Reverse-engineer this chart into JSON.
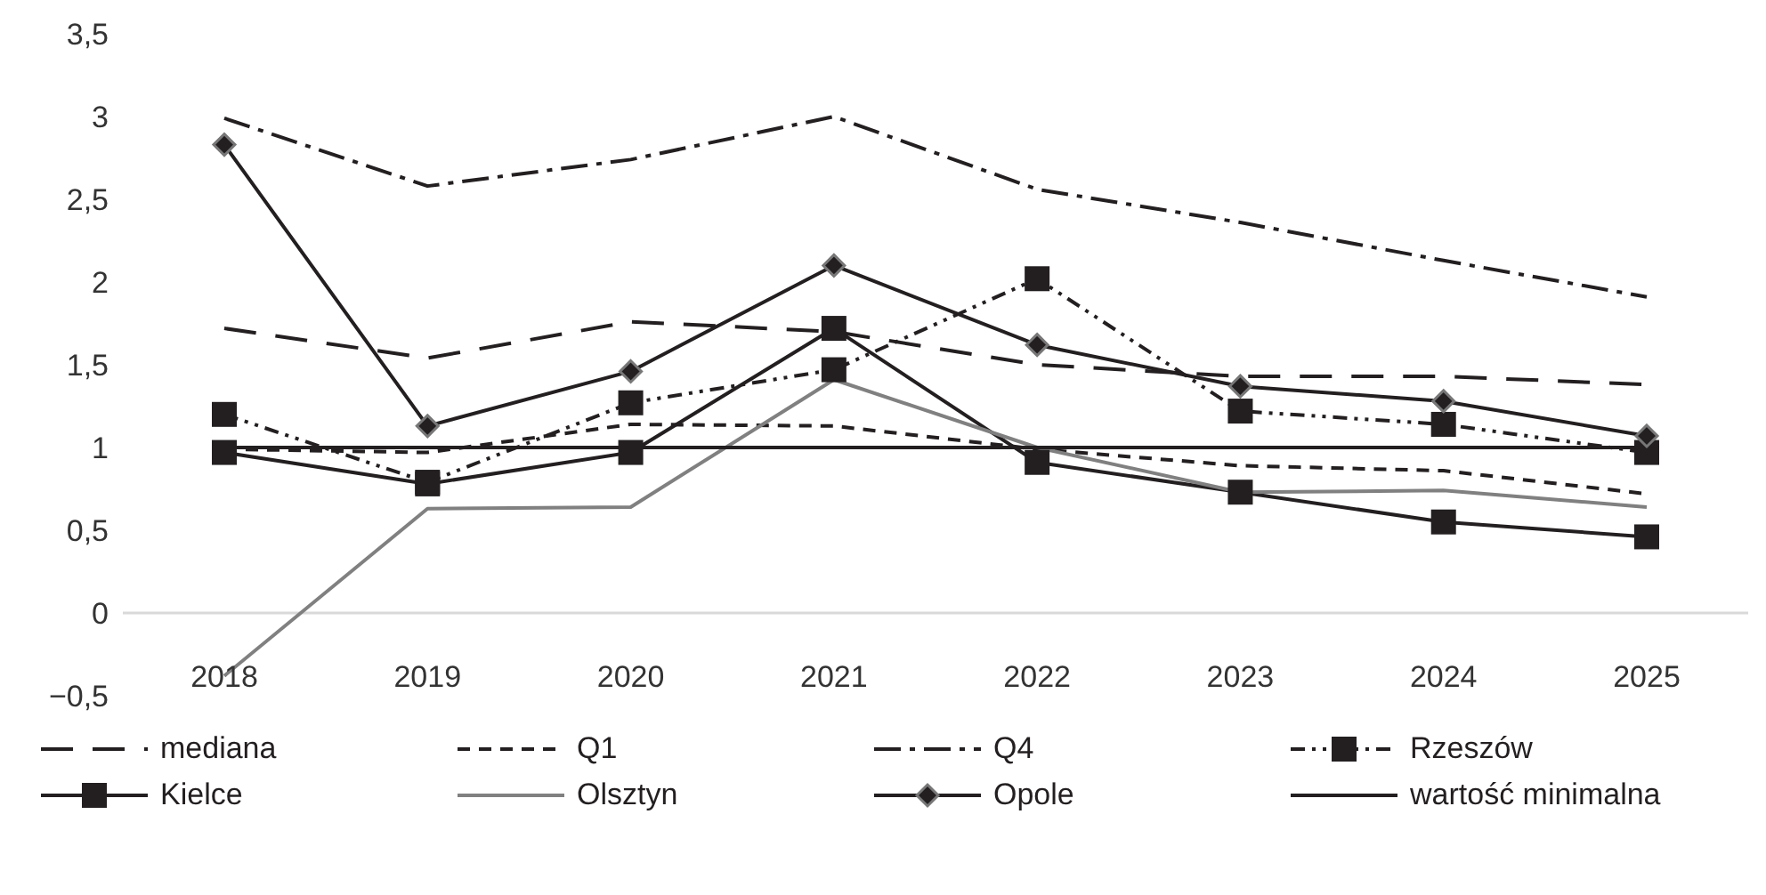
{
  "chart_data": {
    "type": "line",
    "categories": [
      "2018",
      "2019",
      "2020",
      "2021",
      "2022",
      "2023",
      "2024",
      "2025"
    ],
    "series": [
      {
        "name": "mediana",
        "color": "#231f20",
        "line_style": "longdash",
        "marker": "none",
        "values": [
          1.72,
          1.54,
          1.76,
          1.7,
          1.5,
          1.43,
          1.43,
          1.38
        ]
      },
      {
        "name": "Q1",
        "color": "#231f20",
        "line_style": "dashed",
        "marker": "none",
        "values": [
          0.99,
          0.97,
          1.14,
          1.13,
          0.99,
          0.89,
          0.86,
          0.72
        ]
      },
      {
        "name": "Q4",
        "color": "#231f20",
        "line_style": "dashdot",
        "marker": "none",
        "values": [
          2.99,
          2.58,
          2.74,
          3.0,
          2.56,
          2.36,
          2.13,
          1.91
        ]
      },
      {
        "name": "Rzeszów",
        "color": "#231f20",
        "line_style": "dashdotdot",
        "marker": "square",
        "values": [
          1.2,
          0.79,
          1.27,
          1.47,
          2.02,
          1.22,
          1.14,
          0.97
        ]
      },
      {
        "name": "Kielce",
        "color": "#231f20",
        "line_style": "solid",
        "marker": "square",
        "values": [
          0.97,
          0.78,
          0.97,
          1.72,
          0.91,
          0.73,
          0.55,
          0.46
        ]
      },
      {
        "name": "Olsztyn",
        "color": "#808080",
        "line_style": "solid",
        "marker": "none",
        "values": [
          -0.38,
          0.63,
          0.64,
          1.41,
          1.0,
          0.73,
          0.74,
          0.64
        ]
      },
      {
        "name": "Opole",
        "color": "#231f20",
        "line_style": "solid",
        "marker": "diamond",
        "values": [
          2.83,
          1.13,
          1.46,
          2.1,
          1.62,
          1.37,
          1.28,
          1.07
        ]
      },
      {
        "name": "wartość minimalna",
        "color": "#231f20",
        "line_style": "solid",
        "marker": "none",
        "values": [
          1,
          1,
          1,
          1,
          1,
          1,
          1,
          1
        ]
      }
    ],
    "ylim": [
      -0.5,
      3.5
    ],
    "yticks": [
      {
        "value": -0.5,
        "label": "−0,5"
      },
      0,
      {
        "value": 0.5,
        "label": "0,5"
      },
      1,
      {
        "value": 1.5,
        "label": "1,5"
      },
      2,
      {
        "value": 2.5,
        "label": "2,5"
      },
      3,
      {
        "value": 3.5,
        "label": "3,5"
      }
    ],
    "legend": "bottom"
  }
}
